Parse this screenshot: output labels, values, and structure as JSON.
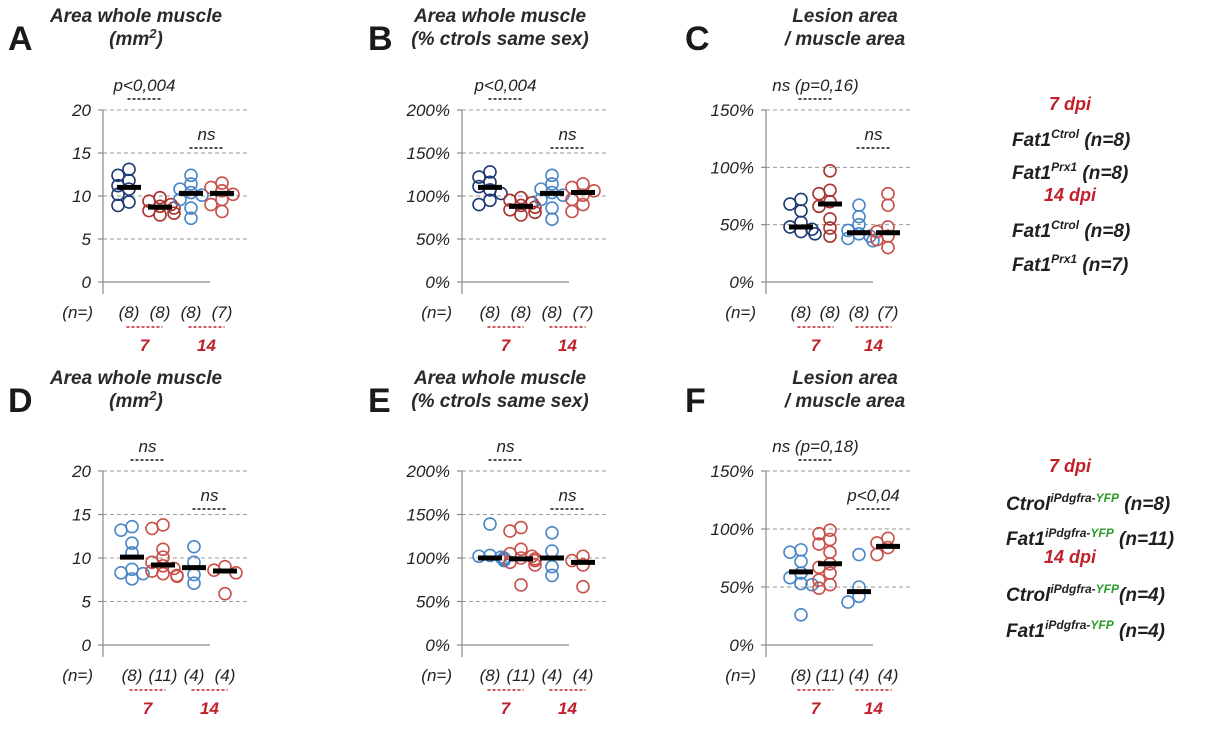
{
  "chart_data": [
    {
      "id": "A",
      "type": "scatter",
      "letter": "A",
      "title": [
        "Area whole muscle",
        "(mm",
        "2",
        ")"
      ],
      "yticks": [
        "0",
        "5",
        "10",
        "15",
        "20"
      ],
      "ylim": [
        0,
        20
      ],
      "ytick_values": [
        0,
        5,
        10,
        15,
        20
      ],
      "n_label": "(n=)",
      "n_values": [
        "(8)",
        "(8)",
        "(8)",
        "(7)"
      ],
      "group_labels": [
        "7",
        "14"
      ],
      "stats": [
        {
          "text": "p<0,004",
          "pair": 0
        },
        {
          "text": "ns",
          "pair": 1
        }
      ],
      "series": [
        {
          "name": "7 dpi Fat1Ctrol",
          "color": "#1f3a73",
          "median": 11.0,
          "values": [
            13.1,
            12.4,
            11.8,
            11.2,
            10.8,
            10.2,
            9.3,
            8.9
          ]
        },
        {
          "name": "7 dpi Fat1Prx1",
          "color": "#a8322f",
          "median": 8.7,
          "values": [
            9.8,
            9.4,
            9.0,
            8.8,
            8.6,
            8.3,
            8.0,
            7.8
          ]
        },
        {
          "name": "14 dpi Fat1Ctrol",
          "color": "#4a86c8",
          "median": 10.3,
          "values": [
            12.4,
            11.4,
            10.8,
            10.4,
            10.1,
            9.6,
            8.6,
            7.4
          ]
        },
        {
          "name": "14 dpi Fat1Prx1",
          "color": "#c9504a",
          "median": 10.3,
          "values": [
            11.5,
            11.0,
            10.6,
            10.2,
            9.6,
            9.0,
            8.2
          ]
        }
      ]
    },
    {
      "id": "B",
      "type": "scatter",
      "letter": "B",
      "title": [
        "Area whole muscle",
        "(% ctrols same sex)"
      ],
      "yticks": [
        "0%",
        "50%",
        "100%",
        "150%",
        "200%"
      ],
      "ylim": [
        0,
        200
      ],
      "ytick_values": [
        0,
        50,
        100,
        150,
        200
      ],
      "n_label": "(n=)",
      "n_values": [
        "(8)",
        "(8)",
        "(8)",
        "(7)"
      ],
      "group_labels": [
        "7",
        "14"
      ],
      "stats": [
        {
          "text": "p<0,004",
          "pair": 0
        },
        {
          "text": "ns",
          "pair": 1
        }
      ],
      "series": [
        {
          "name": "7 dpi Fat1Ctrol",
          "color": "#1f3a73",
          "median": 110,
          "values": [
            128,
            122,
            116,
            111,
            107,
            103,
            95,
            90
          ]
        },
        {
          "name": "7 dpi Fat1Prx1",
          "color": "#a8322f",
          "median": 88,
          "values": [
            98,
            95,
            92,
            89,
            87,
            84,
            81,
            78
          ]
        },
        {
          "name": "14 dpi Fat1Ctrol",
          "color": "#4a86c8",
          "median": 103,
          "values": [
            124,
            114,
            108,
            104,
            101,
            96,
            86,
            73
          ]
        },
        {
          "name": "14 dpi Fat1Prx1",
          "color": "#c9504a",
          "median": 104,
          "values": [
            114,
            110,
            106,
            101,
            96,
            90,
            82
          ]
        }
      ]
    },
    {
      "id": "C",
      "type": "scatter",
      "letter": "C",
      "title": [
        "Lesion area",
        "/ muscle area"
      ],
      "yticks": [
        "0%",
        "50%",
        "100%",
        "150%"
      ],
      "ylim": [
        0,
        150
      ],
      "ytick_values": [
        0,
        50,
        100,
        150
      ],
      "n_label": "(n=)",
      "n_values": [
        "(8)",
        "(8)",
        "(8)",
        "(7)"
      ],
      "group_labels": [
        "7",
        "14"
      ],
      "stats": [
        {
          "text": "ns (p=0,16)",
          "pair": 0
        },
        {
          "text": "ns",
          "pair": 1
        }
      ],
      "series": [
        {
          "name": "7 dpi Fat1Ctrol",
          "color": "#1f3a73",
          "median": 48,
          "values": [
            72,
            68,
            62,
            52,
            48,
            46,
            44,
            42
          ]
        },
        {
          "name": "7 dpi Fat1Prx1",
          "color": "#a8322f",
          "median": 68,
          "values": [
            97,
            80,
            77,
            70,
            66,
            55,
            47,
            40
          ]
        },
        {
          "name": "14 dpi Fat1Ctrol",
          "color": "#4a86c8",
          "median": 43,
          "values": [
            67,
            57,
            50,
            45,
            42,
            40,
            38,
            36
          ]
        },
        {
          "name": "14 dpi Fat1Prx1",
          "color": "#c9504a",
          "median": 43,
          "values": [
            77,
            67,
            48,
            44,
            40,
            37,
            30
          ]
        }
      ]
    },
    {
      "id": "D",
      "type": "scatter",
      "letter": "D",
      "title": [
        "Area whole muscle",
        "(mm",
        "2",
        ")"
      ],
      "yticks": [
        "0",
        "5",
        "10",
        "15",
        "20"
      ],
      "ylim": [
        0,
        20
      ],
      "ytick_values": [
        0,
        5,
        10,
        15,
        20
      ],
      "n_label": "(n=)",
      "n_values": [
        "(8)",
        "(11)",
        "(4)",
        "(4)"
      ],
      "group_labels": [
        "7",
        "14"
      ],
      "stats": [
        {
          "text": "ns",
          "pair": 0
        },
        {
          "text": "ns",
          "pair": 1
        }
      ],
      "series": [
        {
          "name": "7 dpi CtrolPdgfra",
          "color": "#4a86c8",
          "median": 10.1,
          "values": [
            13.6,
            13.2,
            11.7,
            10.6,
            8.7,
            8.3,
            8.2,
            7.6
          ]
        },
        {
          "name": "7 dpi Fat1Pdgfra",
          "color": "#c9504a",
          "median": 9.2,
          "values": [
            13.8,
            13.4,
            11.0,
            10.1,
            9.5,
            9.1,
            8.8,
            8.5,
            8.2,
            8.0,
            7.9
          ]
        },
        {
          "name": "14 dpi CtrolPdgfra",
          "color": "#4a86c8",
          "median": 8.9,
          "values": [
            11.3,
            9.5,
            8.1,
            7.1
          ]
        },
        {
          "name": "14 dpi Fat1Pdgfra",
          "color": "#c9504a",
          "median": 8.5,
          "values": [
            9.0,
            8.6,
            8.3,
            5.9
          ]
        }
      ]
    },
    {
      "id": "E",
      "type": "scatter",
      "letter": "E",
      "title": [
        "Area whole muscle",
        "(% ctrols same sex)"
      ],
      "yticks": [
        "0%",
        "50%",
        "100%",
        "150%",
        "200%"
      ],
      "ylim": [
        0,
        200
      ],
      "ytick_values": [
        0,
        50,
        100,
        150,
        200
      ],
      "n_label": "(n=)",
      "n_values": [
        "(8)",
        "(11)",
        "(4)",
        "(4)"
      ],
      "group_labels": [
        "7",
        "14"
      ],
      "stats": [
        {
          "text": "ns",
          "pair": 0
        },
        {
          "text": "ns",
          "pair": 1
        }
      ],
      "series": [
        {
          "name": "7 dpi CtrolPdgfra",
          "color": "#4a86c8",
          "median": 100,
          "values": [
            139,
            103,
            102,
            101,
            100,
            99,
            98,
            97
          ]
        },
        {
          "name": "7 dpi Fat1Pdgfra",
          "color": "#c9504a",
          "median": 99,
          "values": [
            135,
            131,
            110,
            105,
            102,
            100,
            99,
            97,
            95,
            92,
            69
          ]
        },
        {
          "name": "14 dpi CtrolPdgfra",
          "color": "#4a86c8",
          "median": 100,
          "values": [
            129,
            108,
            90,
            80
          ]
        },
        {
          "name": "14 dpi Fat1Pdgfra",
          "color": "#c9504a",
          "median": 95,
          "values": [
            102,
            97,
            92,
            67
          ]
        }
      ]
    },
    {
      "id": "F",
      "type": "scatter",
      "letter": "F",
      "title": [
        "Lesion area",
        "/ muscle area"
      ],
      "yticks": [
        "0%",
        "50%",
        "100%",
        "150%"
      ],
      "ylim": [
        0,
        150
      ],
      "ytick_values": [
        0,
        50,
        100,
        150
      ],
      "n_label": "(n=)",
      "n_values": [
        "(8)",
        "(11)",
        "(4)",
        "(4)"
      ],
      "group_labels": [
        "7",
        "14"
      ],
      "stats": [
        {
          "text": "ns (p=0,18)",
          "pair": 0
        },
        {
          "text": "p<0,04",
          "pair": 1
        }
      ],
      "series": [
        {
          "name": "7 dpi CtrolPdgfra",
          "color": "#4a86c8",
          "median": 63,
          "values": [
            82,
            80,
            72,
            62,
            58,
            53,
            52,
            26
          ]
        },
        {
          "name": "7 dpi Fat1Pdgfra",
          "color": "#c9504a",
          "median": 70,
          "values": [
            99,
            96,
            91,
            87,
            80,
            70,
            67,
            62,
            56,
            52,
            49
          ]
        },
        {
          "name": "14 dpi CtrolPdgfra",
          "color": "#4a86c8",
          "median": 46,
          "values": [
            78,
            50,
            42,
            37
          ]
        },
        {
          "name": "14 dpi Fat1Pdgfra",
          "color": "#c9504a",
          "median": 85,
          "values": [
            92,
            88,
            84,
            78
          ]
        }
      ]
    }
  ],
  "legends": [
    {
      "id": "top",
      "blocks": [
        {
          "heading": "7 dpi",
          "entries": [
            {
              "base": "Fat1",
              "sup": "Ctrol",
              "sup_green": "",
              "tail": " (n=8)"
            },
            {
              "base": "Fat1",
              "sup": "Prx1",
              "sup_green": "",
              "tail": " (n=8)"
            }
          ]
        },
        {
          "heading": "14 dpi",
          "entries": [
            {
              "base": "Fat1",
              "sup": "Ctrol",
              "sup_green": "",
              "tail": " (n=8)"
            },
            {
              "base": "Fat1",
              "sup": "Prx1",
              "sup_green": "",
              "tail": " (n=7)"
            }
          ]
        }
      ]
    },
    {
      "id": "bottom",
      "blocks": [
        {
          "heading": "7 dpi",
          "entries": [
            {
              "base": "Ctrol",
              "sup": "iPdgfra-",
              "sup_green": "YFP",
              "tail": " (n=8)"
            },
            {
              "base": "Fat1",
              "sup": "iPdgfra-",
              "sup_green": "YFP",
              "tail": " (n=11)"
            }
          ]
        },
        {
          "heading": "14 dpi",
          "entries": [
            {
              "base": "Ctrol",
              "sup": "iPdgfra-",
              "sup_green": "YFP",
              "tail": "(n=4)"
            },
            {
              "base": "Fat1",
              "sup": "iPdgfra-",
              "sup_green": "YFP",
              "tail": " (n=4)"
            }
          ]
        }
      ]
    }
  ]
}
